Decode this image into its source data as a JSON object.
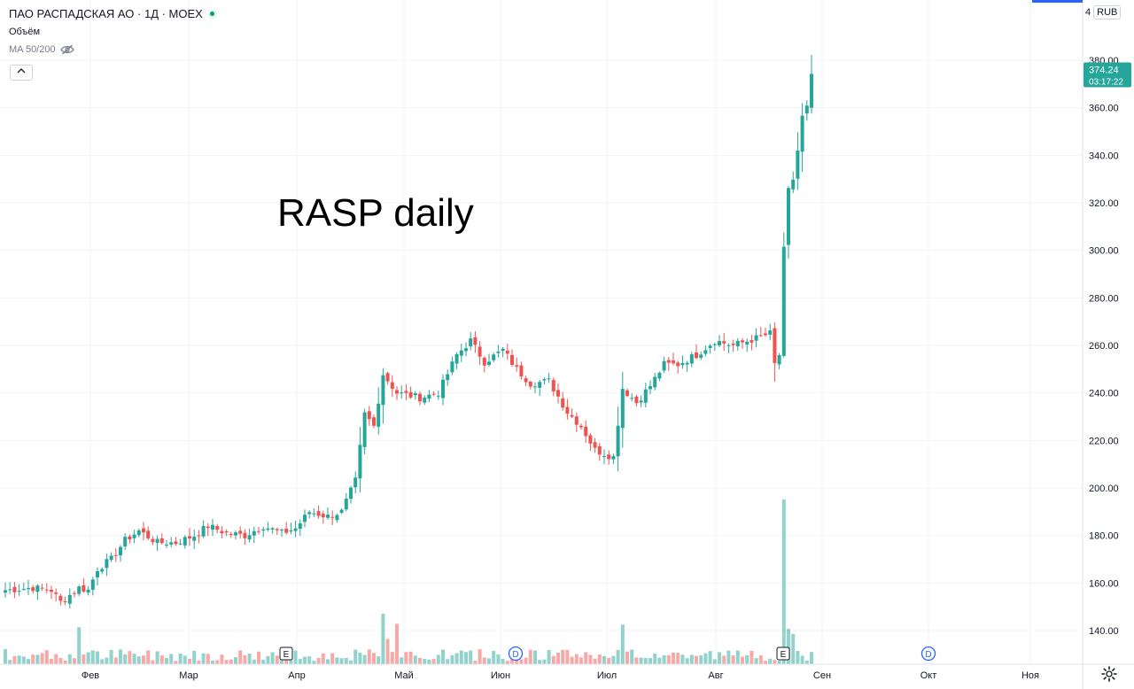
{
  "legend": {
    "title": "ПАО РАСПАДСКАЯ АО · 1Д · MOEX",
    "volume_label": "Объём",
    "ma_label": "MA 50/200"
  },
  "currency": {
    "prefix": "4",
    "code": "RUB"
  },
  "annotation": "RASP daily",
  "colors": {
    "up": "#26a69a",
    "down": "#ef5350",
    "vol_up": "#92d2cc",
    "vol_down": "#f7a9a7",
    "grid": "#f0f3fa",
    "accent": "#2962ff"
  },
  "chart_data": {
    "type": "candlestick",
    "title": "RASP daily",
    "price_axis": {
      "ticks": [
        "380.00",
        "360.00",
        "340.00",
        "320.00",
        "300.00",
        "280.00",
        "260.00",
        "240.00",
        "220.00",
        "200.00",
        "180.00",
        "160.00",
        "140.00"
      ],
      "ylim": [
        132,
        390
      ]
    },
    "time_axis": {
      "ticks": [
        "Фев",
        "Мар",
        "Апр",
        "Май",
        "Июн",
        "Июл",
        "Авг",
        "Сен",
        "Окт",
        "Ноя"
      ]
    },
    "last_price": {
      "value": "374.24",
      "countdown": "03:17:22"
    },
    "event_markers": [
      {
        "label": "E",
        "month": "Апр"
      },
      {
        "label": "D",
        "month": "Июн"
      },
      {
        "label": "E",
        "month": "Авг"
      },
      {
        "label": "D",
        "month": "Окт"
      }
    ],
    "price_anchors": [
      [
        0,
        157
      ],
      [
        6,
        158
      ],
      [
        10,
        157
      ],
      [
        12,
        152
      ],
      [
        14,
        155
      ],
      [
        16,
        158
      ],
      [
        18,
        157
      ],
      [
        20,
        166
      ],
      [
        23,
        170
      ],
      [
        26,
        178
      ],
      [
        29,
        182
      ],
      [
        33,
        177
      ],
      [
        37,
        177
      ],
      [
        41,
        180
      ],
      [
        44,
        184
      ],
      [
        48,
        181
      ],
      [
        52,
        180
      ],
      [
        56,
        184
      ],
      [
        60,
        181
      ],
      [
        63,
        183
      ],
      [
        66,
        190
      ],
      [
        70,
        188
      ],
      [
        73,
        190
      ],
      [
        76,
        203
      ],
      [
        78,
        231
      ],
      [
        80,
        226
      ],
      [
        82,
        248
      ],
      [
        85,
        240
      ],
      [
        90,
        238
      ],
      [
        94,
        240
      ],
      [
        98,
        256
      ],
      [
        101,
        262
      ],
      [
        104,
        253
      ],
      [
        108,
        258
      ],
      [
        111,
        250
      ],
      [
        114,
        244
      ],
      [
        118,
        245
      ],
      [
        122,
        232
      ],
      [
        125,
        226
      ],
      [
        128,
        216
      ],
      [
        132,
        213
      ],
      [
        134,
        242
      ],
      [
        137,
        236
      ],
      [
        140,
        243
      ],
      [
        143,
        252
      ],
      [
        146,
        252
      ],
      [
        150,
        256
      ],
      [
        154,
        262
      ],
      [
        158,
        260
      ],
      [
        163,
        263
      ],
      [
        166,
        265
      ],
      [
        167,
        252
      ],
      [
        168,
        256
      ],
      [
        169,
        300
      ],
      [
        170,
        325
      ],
      [
        171,
        330
      ],
      [
        172,
        342
      ],
      [
        173,
        356
      ],
      [
        174,
        360
      ],
      [
        175,
        374.24
      ]
    ],
    "volume_spikes": [
      {
        "bar": 82,
        "value": 60
      },
      {
        "bar": 83,
        "value": 30
      },
      {
        "bar": 85,
        "value": 48
      },
      {
        "bar": 16,
        "value": 44
      },
      {
        "bar": 134,
        "value": 47
      },
      {
        "bar": 169,
        "value": 196
      },
      {
        "bar": 170,
        "value": 42
      },
      {
        "bar": 171,
        "value": 36
      }
    ]
  }
}
